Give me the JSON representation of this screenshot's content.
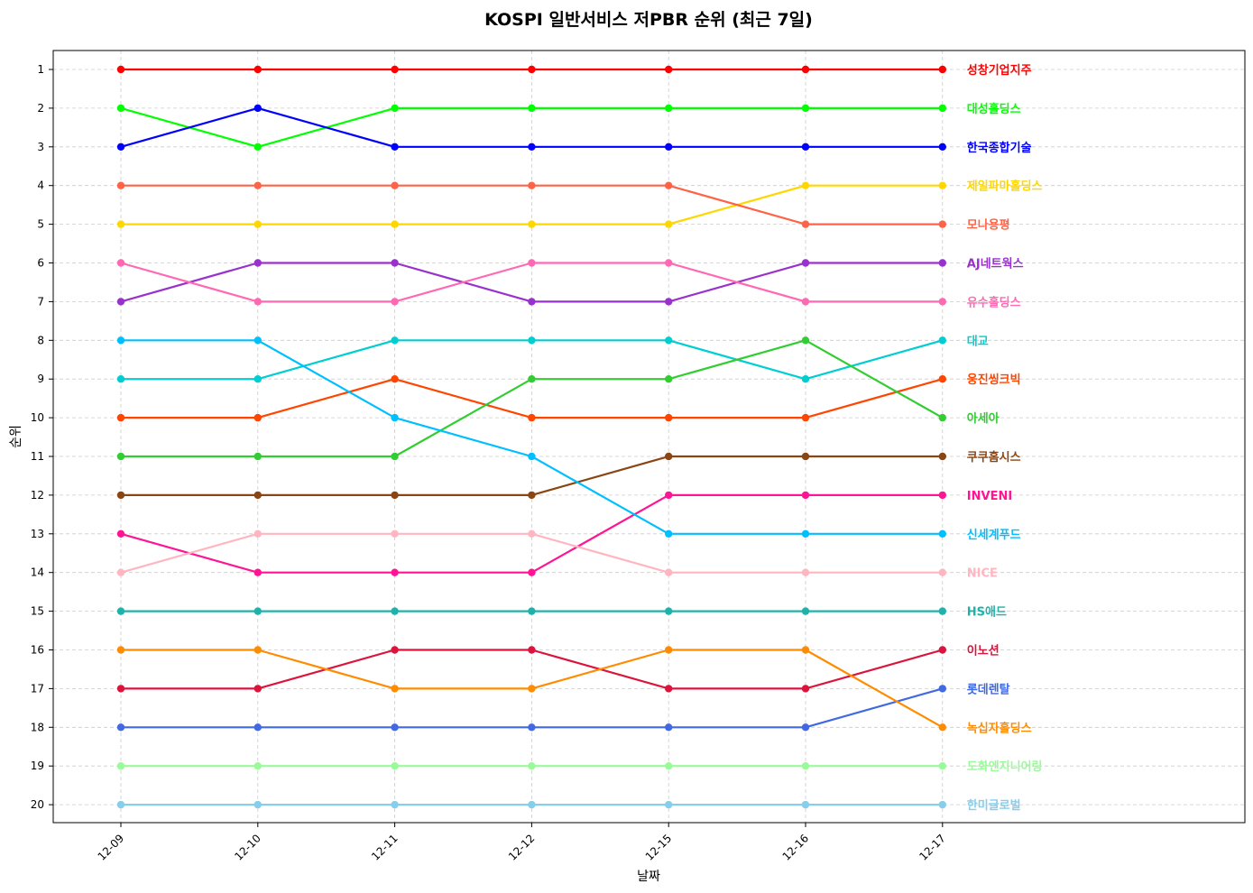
{
  "chart_data": {
    "type": "line",
    "title": "KOSPI 일반서비스 저PBR 순위 (최근 7일)",
    "xlabel": "날짜",
    "ylabel": "순위",
    "x": [
      "12-09",
      "12-10",
      "12-11",
      "12-12",
      "12-15",
      "12-16",
      "12-17"
    ],
    "y_ticks": [
      "1",
      "2",
      "3",
      "4",
      "5",
      "6",
      "7",
      "8",
      "9",
      "10",
      "11",
      "12",
      "13",
      "14",
      "15",
      "16",
      "17",
      "18",
      "19",
      "20"
    ],
    "ylim": [
      20,
      1
    ],
    "y_inverted": true,
    "grid": true,
    "legend": "labels at line ends (right)",
    "series": [
      {
        "name": "성창기업지주",
        "color": "#ff0000",
        "values": [
          1,
          1,
          1,
          1,
          1,
          1,
          1
        ]
      },
      {
        "name": "대성홀딩스",
        "color": "#00ff00",
        "values": [
          2,
          3,
          2,
          2,
          2,
          2,
          2
        ]
      },
      {
        "name": "한국종합기술",
        "color": "#0000ff",
        "values": [
          3,
          2,
          3,
          3,
          3,
          3,
          3
        ]
      },
      {
        "name": "제일파마홀딩스",
        "color": "#ffd700",
        "values": [
          5,
          5,
          5,
          5,
          5,
          4,
          4
        ]
      },
      {
        "name": "모나용평",
        "color": "#ff6347",
        "values": [
          4,
          4,
          4,
          4,
          4,
          5,
          5
        ]
      },
      {
        "name": "AJ네트웍스",
        "color": "#9932cc",
        "values": [
          7,
          6,
          6,
          7,
          7,
          6,
          6
        ]
      },
      {
        "name": "유수홀딩스",
        "color": "#ff69b4",
        "values": [
          6,
          7,
          7,
          6,
          6,
          7,
          7
        ]
      },
      {
        "name": "대교",
        "color": "#00ced1",
        "values": [
          9,
          9,
          8,
          8,
          8,
          9,
          8
        ]
      },
      {
        "name": "웅진씽크빅",
        "color": "#ff4500",
        "values": [
          10,
          10,
          9,
          10,
          10,
          10,
          9
        ]
      },
      {
        "name": "아세아",
        "color": "#32cd32",
        "values": [
          11,
          11,
          11,
          9,
          9,
          8,
          10
        ]
      },
      {
        "name": "쿠쿠홈시스",
        "color": "#8b4513",
        "values": [
          12,
          12,
          12,
          12,
          11,
          11,
          11
        ]
      },
      {
        "name": "INVENI",
        "color": "#ff1493",
        "values": [
          13,
          14,
          14,
          14,
          12,
          12,
          12
        ]
      },
      {
        "name": "신세계푸드",
        "color": "#00bfff",
        "values": [
          8,
          8,
          10,
          11,
          13,
          13,
          13
        ]
      },
      {
        "name": "NICE",
        "color": "#ffb6c1",
        "values": [
          14,
          13,
          13,
          13,
          14,
          14,
          14
        ]
      },
      {
        "name": "HS애드",
        "color": "#20b2aa",
        "values": [
          15,
          15,
          15,
          15,
          15,
          15,
          15
        ]
      },
      {
        "name": "이노션",
        "color": "#dc143c",
        "values": [
          17,
          17,
          16,
          16,
          17,
          17,
          16
        ]
      },
      {
        "name": "롯데렌탈",
        "color": "#4169e1",
        "values": [
          18,
          18,
          18,
          18,
          18,
          18,
          17
        ]
      },
      {
        "name": "녹십자홀딩스",
        "color": "#ff8c00",
        "values": [
          16,
          16,
          17,
          17,
          16,
          16,
          18
        ]
      },
      {
        "name": "도화엔지니어링",
        "color": "#98fb98",
        "values": [
          19,
          19,
          19,
          19,
          19,
          19,
          19
        ]
      },
      {
        "name": "한미글로벌",
        "color": "#87ceeb",
        "values": [
          20,
          20,
          20,
          20,
          20,
          20,
          20
        ]
      }
    ]
  }
}
